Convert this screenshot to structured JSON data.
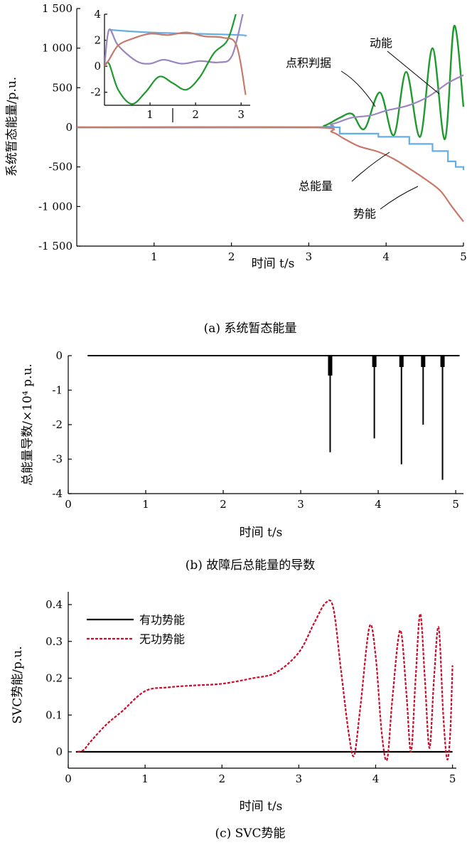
{
  "chart_data": [
    {
      "type": "line",
      "caption": "(a) 系统暂态能量",
      "xlabel": "时间 t/s",
      "ylabel": "系统暂态能量/p.u.",
      "xlim": [
        0,
        5
      ],
      "ylim": [
        -1500,
        1500
      ],
      "xticks": [
        "1",
        "2",
        "3",
        "4",
        "5"
      ],
      "yticks": [
        "1 500",
        "1 000",
        "500",
        "0",
        "-500",
        "-1 000",
        "-1 500"
      ],
      "series": [
        {
          "name": "动能",
          "color": "#1f9a2e",
          "x": [
            0,
            3.0,
            3.2,
            3.4,
            3.56,
            3.72,
            3.92,
            4.1,
            4.26,
            4.44,
            4.6,
            4.76,
            4.88,
            5.0
          ],
          "y": [
            0,
            0,
            20,
            120,
            170,
            -20,
            440,
            -100,
            700,
            -120,
            1000,
            -150,
            1280,
            260
          ]
        },
        {
          "name": "点积判据",
          "color": "#9b87c0",
          "x": [
            0,
            3.0,
            3.3,
            3.55,
            3.8,
            4.0,
            4.3,
            4.55,
            4.8,
            5.0
          ],
          "y": [
            0,
            0,
            40,
            120,
            150,
            210,
            280,
            390,
            560,
            660
          ]
        },
        {
          "name": "总能量",
          "color": "#63aee6",
          "x": [
            0,
            3.3,
            3.4,
            3.9,
            4.3,
            4.6,
            4.8,
            4.9,
            5.0
          ],
          "y": [
            0,
            0,
            -80,
            -120,
            -210,
            -300,
            -430,
            -500,
            -540
          ]
        },
        {
          "name": "势能",
          "color": "#c77a6a",
          "x": [
            0,
            3.0,
            3.3,
            3.45,
            3.65,
            3.9,
            4.1,
            4.3,
            4.5,
            4.7,
            4.85,
            5.0
          ],
          "y": [
            0,
            0,
            -60,
            -140,
            -240,
            -310,
            -400,
            -520,
            -650,
            -800,
            -1000,
            -1190
          ]
        }
      ],
      "annotations": [
        "动能",
        "点积判据",
        "总能量",
        "势能"
      ],
      "inset": {
        "xlim": [
          0,
          3.2
        ],
        "ylim": [
          -3,
          4
        ],
        "xticks": [
          "1",
          "2",
          "3"
        ],
        "yticks": [
          "4",
          "2",
          "0",
          "-2"
        ],
        "series": [
          {
            "color": "#63aee6",
            "x": [
              0.1,
              1,
              2,
              3,
              3.1
            ],
            "y": [
              2.8,
              2.6,
              2.5,
              2.4,
              2.3
            ]
          },
          {
            "color": "#9b87c0",
            "x": [
              0,
              0.1,
              0.3,
              0.7,
              1.0,
              1.3,
              1.7,
              2.1,
              2.5,
              2.8,
              3.05
            ],
            "y": [
              0,
              2.8,
              1.6,
              0.4,
              0.2,
              0.5,
              0.2,
              0.4,
              0.3,
              0.8,
              4.2
            ]
          },
          {
            "color": "#1f9a2e",
            "x": [
              0,
              0.1,
              0.3,
              0.6,
              0.9,
              1.2,
              1.5,
              1.8,
              2.1,
              2.4,
              2.7,
              2.9
            ],
            "y": [
              0,
              0.2,
              -1.8,
              -2.9,
              -2.0,
              -0.8,
              -1.3,
              -1.8,
              -0.8,
              1.0,
              2.0,
              4.2
            ]
          },
          {
            "color": "#c77a6a",
            "x": [
              0,
              0.1,
              0.3,
              0.6,
              1.0,
              1.4,
              1.8,
              2.2,
              2.6,
              2.9,
              3.1
            ],
            "y": [
              0,
              0.5,
              1.6,
              2.1,
              2.5,
              2.4,
              2.6,
              2.3,
              2.2,
              1.6,
              -2.2
            ]
          }
        ]
      }
    },
    {
      "type": "line",
      "caption": "(b) 故障后总能量的导数",
      "xlabel": "时间 t/s",
      "ylabel": "总能量导数/×10⁴ p.u.",
      "xlim": [
        0,
        5.1
      ],
      "ylim": [
        -4,
        0
      ],
      "xticks": [
        "0",
        "1",
        "2",
        "3",
        "4",
        "5"
      ],
      "yticks": [
        "0",
        "-1",
        "-2",
        "-3",
        "-4"
      ],
      "series": [
        {
          "name": "",
          "color": "#000000"
        }
      ],
      "spikes": [
        {
          "x": 3.38,
          "y": -2.8
        },
        {
          "x": 3.95,
          "y": -2.4
        },
        {
          "x": 4.3,
          "y": -3.15
        },
        {
          "x": 4.58,
          "y": -2.0
        },
        {
          "x": 4.83,
          "y": -3.6
        }
      ],
      "baseline": {
        "x_start": 0.25,
        "x_end": 5.05,
        "y": 0
      }
    },
    {
      "type": "line",
      "caption": "(c) SVC势能",
      "xlabel": "时间 t/s",
      "ylabel": "SVC势能/p.u.",
      "xlim": [
        0,
        5.05
      ],
      "ylim": [
        -0.05,
        0.42
      ],
      "xticks": [
        "0",
        "1",
        "2",
        "3",
        "4",
        "5"
      ],
      "yticks": [
        "0.4",
        "0.3",
        "0.2",
        "0.1",
        "0"
      ],
      "legend": "top-left",
      "series": [
        {
          "name": "有功势能",
          "color": "#000000",
          "dash": "solid",
          "x": [
            0.1,
            5.0
          ],
          "y": [
            0,
            0
          ]
        },
        {
          "name": "无功势能",
          "color": "#c8102e",
          "dash": "dashed",
          "x": [
            0.12,
            0.2,
            0.3,
            0.5,
            0.7,
            1.0,
            1.3,
            1.6,
            2.0,
            2.4,
            2.7,
            3.0,
            3.2,
            3.35,
            3.45,
            3.55,
            3.65,
            3.72,
            3.8,
            3.92,
            4.0,
            4.08,
            4.15,
            4.22,
            4.32,
            4.4,
            4.46,
            4.52,
            4.58,
            4.64,
            4.7,
            4.76,
            4.82,
            4.88,
            4.93,
            4.97,
            5.0
          ],
          "y": [
            0.0,
            0.005,
            0.03,
            0.075,
            0.11,
            0.165,
            0.175,
            0.18,
            0.185,
            0.2,
            0.215,
            0.27,
            0.35,
            0.405,
            0.39,
            0.22,
            0.05,
            -0.01,
            0.12,
            0.34,
            0.26,
            0.05,
            -0.02,
            0.15,
            0.33,
            0.16,
            0.0,
            0.2,
            0.375,
            0.2,
            0.01,
            0.2,
            0.338,
            0.1,
            -0.02,
            0.05,
            0.235
          ]
        }
      ]
    }
  ]
}
